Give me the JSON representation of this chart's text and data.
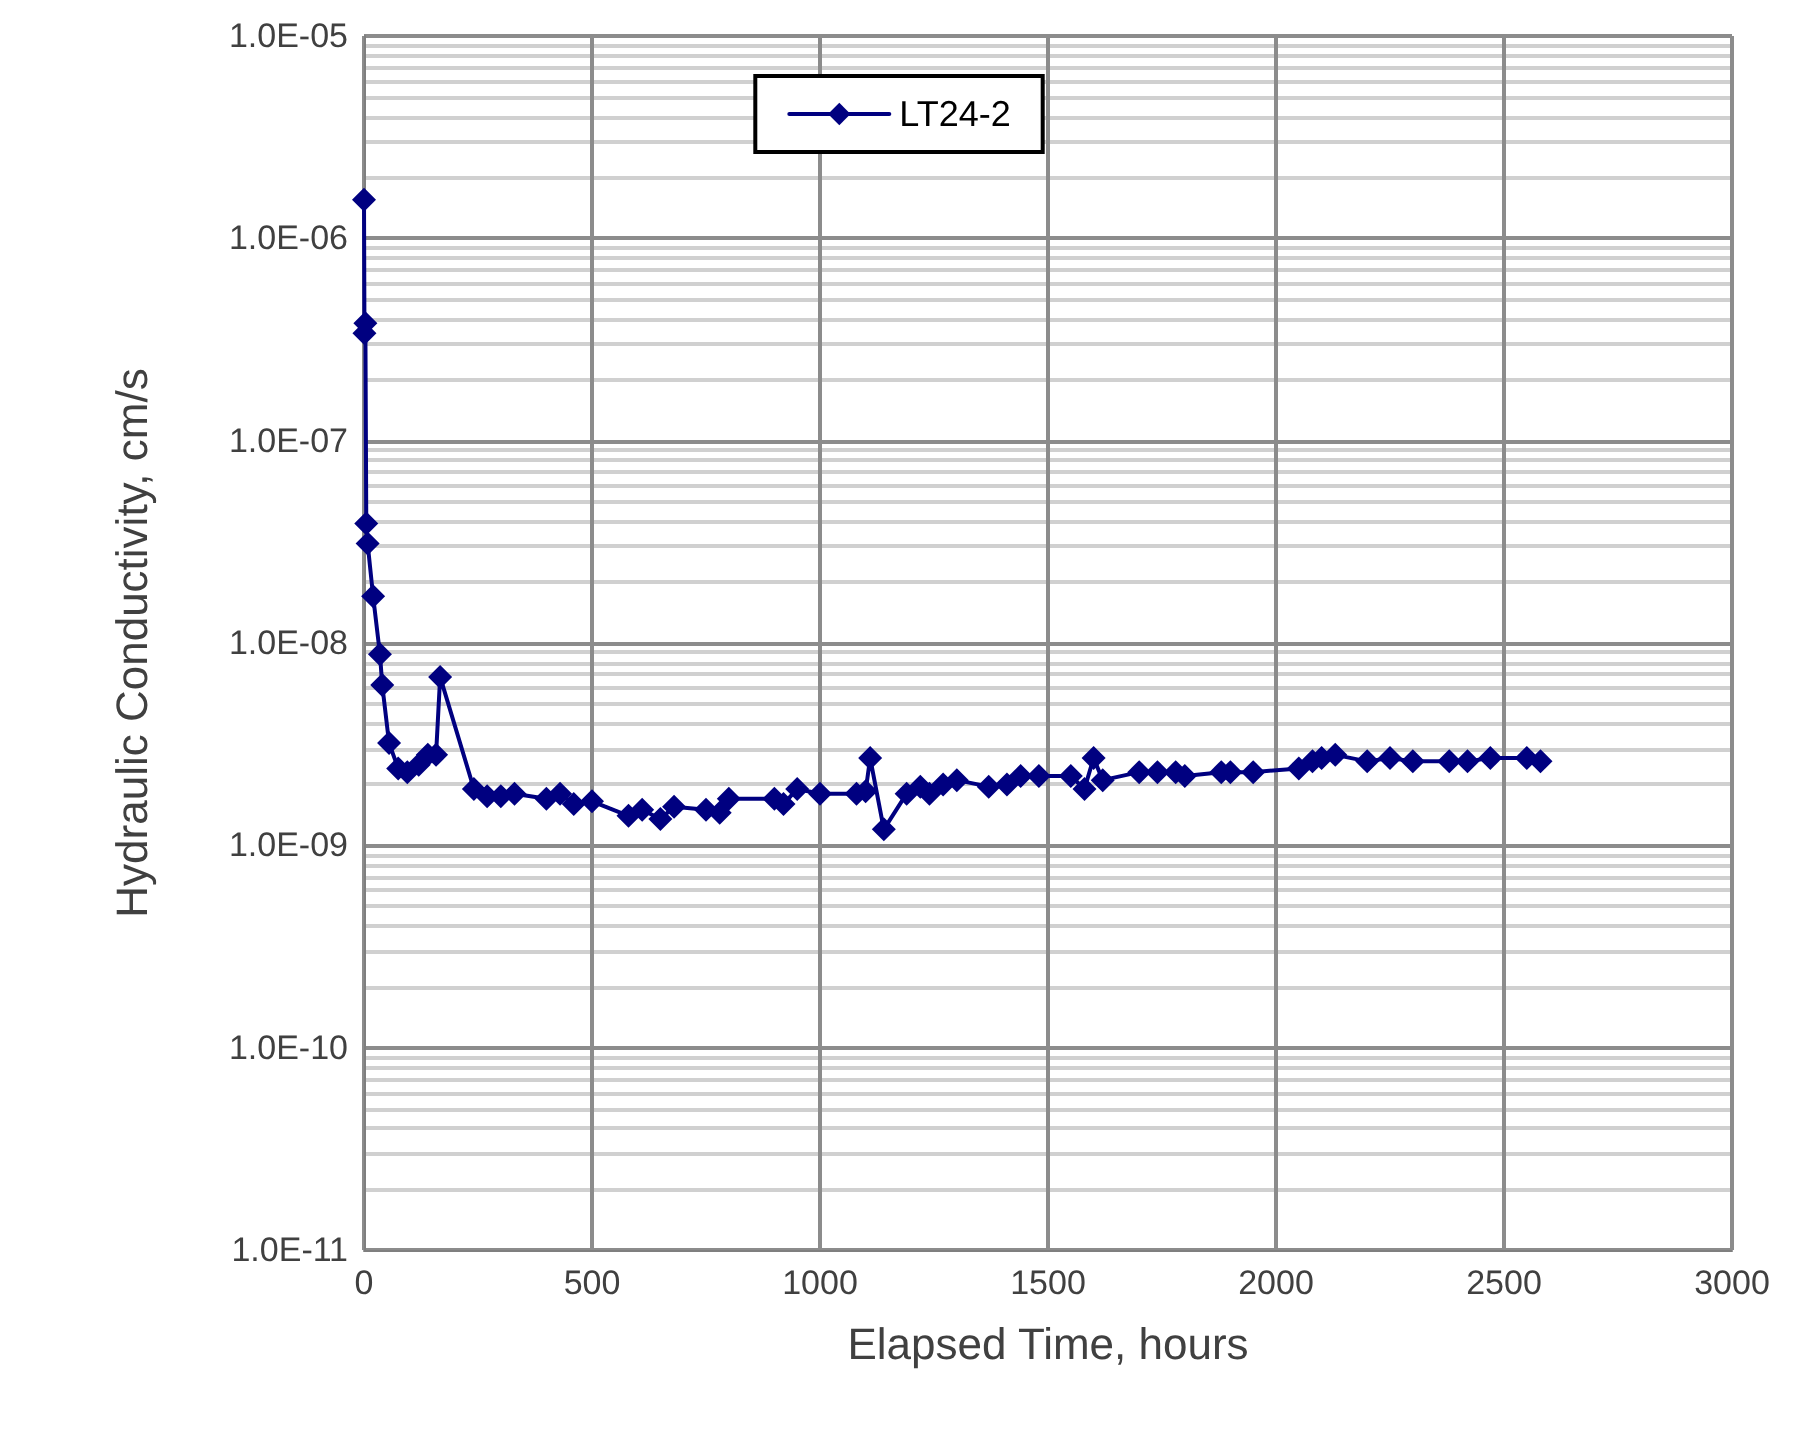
{
  "chart_data": {
    "type": "line",
    "xlabel": "Elapsed Time, hours",
    "ylabel": "Hydraulic Conductivity, cm/s",
    "log": "y",
    "grid": true,
    "legend": "top",
    "marker": "diamond",
    "line_style": "solid",
    "xlim": [
      0,
      3000
    ],
    "xticks": [
      0,
      500,
      1000,
      1500,
      2000,
      2500,
      3000
    ],
    "ylim": [
      1e-11,
      1e-05
    ],
    "yticks": [
      {
        "value": 1e-11,
        "label": "1.0E-11"
      },
      {
        "value": 1e-10,
        "label": "1.0E-10"
      },
      {
        "value": 1e-09,
        "label": "1.0E-09"
      },
      {
        "value": 1e-08,
        "label": "1.0E-08"
      },
      {
        "value": 1e-07,
        "label": "1.0E-07"
      },
      {
        "value": 1e-06,
        "label": "1.0E-06"
      },
      {
        "value": 1e-05,
        "label": "1.0E-05"
      }
    ],
    "series": [
      {
        "name": "LT24-2",
        "color": "#000080",
        "x": [
          0,
          1,
          3,
          5,
          8,
          20,
          35,
          40,
          55,
          75,
          95,
          120,
          140,
          158,
          167,
          241,
          270,
          300,
          330,
          400,
          430,
          460,
          500,
          580,
          610,
          650,
          680,
          750,
          780,
          800,
          900,
          920,
          950,
          1000,
          1080,
          1100,
          1110,
          1140,
          1190,
          1220,
          1240,
          1270,
          1300,
          1370,
          1410,
          1440,
          1480,
          1550,
          1580,
          1600,
          1620,
          1700,
          1740,
          1780,
          1800,
          1880,
          1900,
          1950,
          2050,
          2080,
          2100,
          2130,
          2200,
          2250,
          2300,
          2380,
          2420,
          2470,
          2550,
          2580
        ],
        "values": [
          1.55e-06,
          3.4e-07,
          3.8e-07,
          3.9e-08,
          3.1e-08,
          1.7e-08,
          8.8e-09,
          6.2e-09,
          3.2e-09,
          2.4e-09,
          2.3e-09,
          2.5e-09,
          2.8e-09,
          2.8e-09,
          6.8e-09,
          1.9e-09,
          1.75e-09,
          1.75e-09,
          1.8e-09,
          1.7e-09,
          1.8e-09,
          1.6e-09,
          1.65e-09,
          1.4e-09,
          1.5e-09,
          1.35e-09,
          1.55e-09,
          1.5e-09,
          1.45e-09,
          1.7e-09,
          1.7e-09,
          1.6e-09,
          1.9e-09,
          1.8e-09,
          1.8e-09,
          1.85e-09,
          2.7e-09,
          1.2e-09,
          1.8e-09,
          1.95e-09,
          1.8e-09,
          2e-09,
          2.1e-09,
          1.95e-09,
          2e-09,
          2.2e-09,
          2.2e-09,
          2.2e-09,
          1.9e-09,
          2.7e-09,
          2.1e-09,
          2.3e-09,
          2.3e-09,
          2.3e-09,
          2.2e-09,
          2.3e-09,
          2.3e-09,
          2.3e-09,
          2.4e-09,
          2.6e-09,
          2.7e-09,
          2.8e-09,
          2.6e-09,
          2.7e-09,
          2.6e-09,
          2.6e-09,
          2.6e-09,
          2.7e-09,
          2.7e-09,
          2.6e-09
        ]
      }
    ]
  }
}
